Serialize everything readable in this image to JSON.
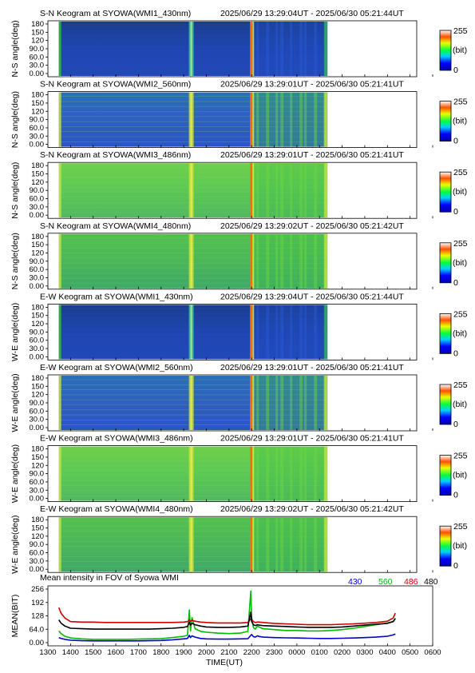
{
  "figure": {
    "keogram_panels": [
      {
        "title": "S-N Keogram at SYOWA(WMI1_430nm)",
        "time_range": "2025/06/29 13:29:04UT - 2025/06/30 05:21:44UT",
        "ylabel": "N-S angle(deg)",
        "yticks": [
          "180",
          "150",
          "120",
          "90.0",
          "60.0",
          "30.0",
          "0.00"
        ],
        "base": "blue"
      },
      {
        "title": "S-N Keogram at SYOWA(WMI2_560nm)",
        "time_range": "2025/06/29 13:29:01UT - 2025/06/30 05:21:41UT",
        "ylabel": "N-S angle(deg)",
        "yticks": [
          "180",
          "150",
          "120",
          "90.0",
          "60.0",
          "30.0",
          "0.00"
        ],
        "base": "green560"
      },
      {
        "title": "S-N Keogram at SYOWA(WMI3_486nm)",
        "time_range": "2025/06/29 13:29:01UT - 2025/06/30 05:21:41UT",
        "ylabel": "N-S angle(deg)",
        "yticks": [
          "180",
          "150",
          "120",
          "90.0",
          "60.0",
          "30.0",
          "0.00"
        ],
        "base": "green486"
      },
      {
        "title": "S-N Keogram at SYOWA(WMI4_480nm)",
        "time_range": "2025/06/29 13:29:02UT - 2025/06/30 05:21:42UT",
        "ylabel": "N-S angle(deg)",
        "yticks": [
          "180",
          "150",
          "120",
          "90.0",
          "60.0",
          "30.0",
          "0.00"
        ],
        "base": "green480"
      },
      {
        "title": "E-W Keogram at SYOWA(WMI1_430nm)",
        "time_range": "2025/06/29 13:29:04UT - 2025/06/30 05:21:44UT",
        "ylabel": "W-E angle(deg)",
        "yticks": [
          "180",
          "150",
          "120",
          "90.0",
          "60.0",
          "30.0",
          "0.00"
        ],
        "base": "blue"
      },
      {
        "title": "E-W Keogram at SYOWA(WMI2_560nm)",
        "time_range": "2025/06/29 13:29:01UT - 2025/06/30 05:21:41UT",
        "ylabel": "W-E angle(deg)",
        "yticks": [
          "180",
          "150",
          "120",
          "90.0",
          "60.0",
          "30.0",
          "0.00"
        ],
        "base": "green560"
      },
      {
        "title": "E-W Keogram at SYOWA(WMI3_486nm)",
        "time_range": "2025/06/29 13:29:01UT - 2025/06/30 05:21:41UT",
        "ylabel": "W-E angle(deg)",
        "yticks": [
          "180",
          "150",
          "120",
          "90.0",
          "60.0",
          "30.0",
          "0.00"
        ],
        "base": "green486"
      },
      {
        "title": "E-W Keogram at SYOWA(WMI4_480nm)",
        "time_range": "2025/06/29 13:29:02UT - 2025/06/30 05:21:42UT",
        "ylabel": "W-E angle(deg)",
        "yticks": [
          "180",
          "150",
          "120",
          "90.0",
          "60.0",
          "30.0",
          "0.00"
        ],
        "base": "green480"
      }
    ],
    "colorbar": {
      "max_label": "255",
      "unit_label": "(bit)",
      "min_label": "0"
    },
    "colors": {
      "blue": "#1f3fa8",
      "green560": "#2f9a58",
      "green486": "#5fc44a",
      "green480": "#48b35a",
      "series430": "#0000cc",
      "series560": "#00bb00",
      "series486": "#cc0000",
      "series480": "#000000"
    }
  },
  "chart_data": {
    "type": "line",
    "title": "Mean intensity in FOV of Syowa WMI",
    "xlabel": "TIME(UT)",
    "ylabel": "MEAN(BIT)",
    "xlim": [
      1300,
      2900
    ],
    "ylim": [
      0,
      256
    ],
    "yticks": [
      "256",
      "192",
      "128",
      "64.0",
      "0.00"
    ],
    "xticks": [
      "1300",
      "1400",
      "1500",
      "1600",
      "1700",
      "1800",
      "1900",
      "2000",
      "2100",
      "2200",
      "2300",
      "0000",
      "0100",
      "0200",
      "0300",
      "0400",
      "0500",
      "0600"
    ],
    "x": [
      1329,
      1335,
      1345,
      1400,
      1430,
      1500,
      1530,
      1600,
      1630,
      1700,
      1730,
      1800,
      1830,
      1900,
      1910,
      1915,
      1918,
      1922,
      1930,
      1945,
      2000,
      2030,
      2100,
      2130,
      2150,
      2158,
      2200,
      2205,
      2210,
      2215,
      2220,
      2230,
      2300,
      2330,
      2400,
      2430,
      2500,
      2530,
      2600,
      2630,
      2700,
      2730,
      2800,
      2815,
      2821
    ],
    "series": [
      {
        "name": "430",
        "color": "#0000cc",
        "values": [
          30,
          26,
          22,
          18,
          16,
          15,
          15,
          15,
          15,
          15,
          16,
          17,
          20,
          24,
          26,
          40,
          30,
          38,
          32,
          26,
          24,
          23,
          23,
          24,
          25,
          40,
          44,
          34,
          32,
          38,
          35,
          32,
          30,
          29,
          28,
          27,
          26,
          26,
          27,
          28,
          30,
          32,
          36,
          42,
          46
        ]
      },
      {
        "name": "560",
        "color": "#00bb00",
        "values": [
          60,
          48,
          36,
          28,
          24,
          22,
          22,
          22,
          22,
          23,
          24,
          25,
          30,
          36,
          40,
          155,
          60,
          120,
          70,
          58,
          54,
          50,
          48,
          50,
          58,
          240,
          120,
          75,
          68,
          82,
          78,
          70,
          66,
          62,
          62,
          60,
          60,
          62,
          66,
          72,
          80,
          88,
          96,
          102,
          118
        ]
      },
      {
        "name": "486",
        "color": "#cc0000",
        "values": [
          165,
          140,
          118,
          102,
          100,
          100,
          98,
          98,
          98,
          98,
          98,
          98,
          98,
          100,
          102,
          110,
          104,
          108,
          104,
          100,
          98,
          96,
          96,
          96,
          98,
          115,
          112,
          102,
          98,
          100,
          100,
          98,
          94,
          92,
          90,
          88,
          88,
          88,
          90,
          92,
          95,
          98,
          104,
          118,
          140
        ]
      },
      {
        "name": "480",
        "color": "#000000",
        "values": [
          110,
          95,
          82,
          72,
          70,
          68,
          68,
          68,
          68,
          68,
          68,
          70,
          72,
          76,
          80,
          100,
          86,
          95,
          88,
          82,
          78,
          76,
          76,
          78,
          82,
          145,
          102,
          88,
          84,
          88,
          86,
          84,
          82,
          80,
          78,
          76,
          76,
          76,
          78,
          82,
          86,
          90,
          94,
          102,
          115
        ]
      }
    ]
  }
}
